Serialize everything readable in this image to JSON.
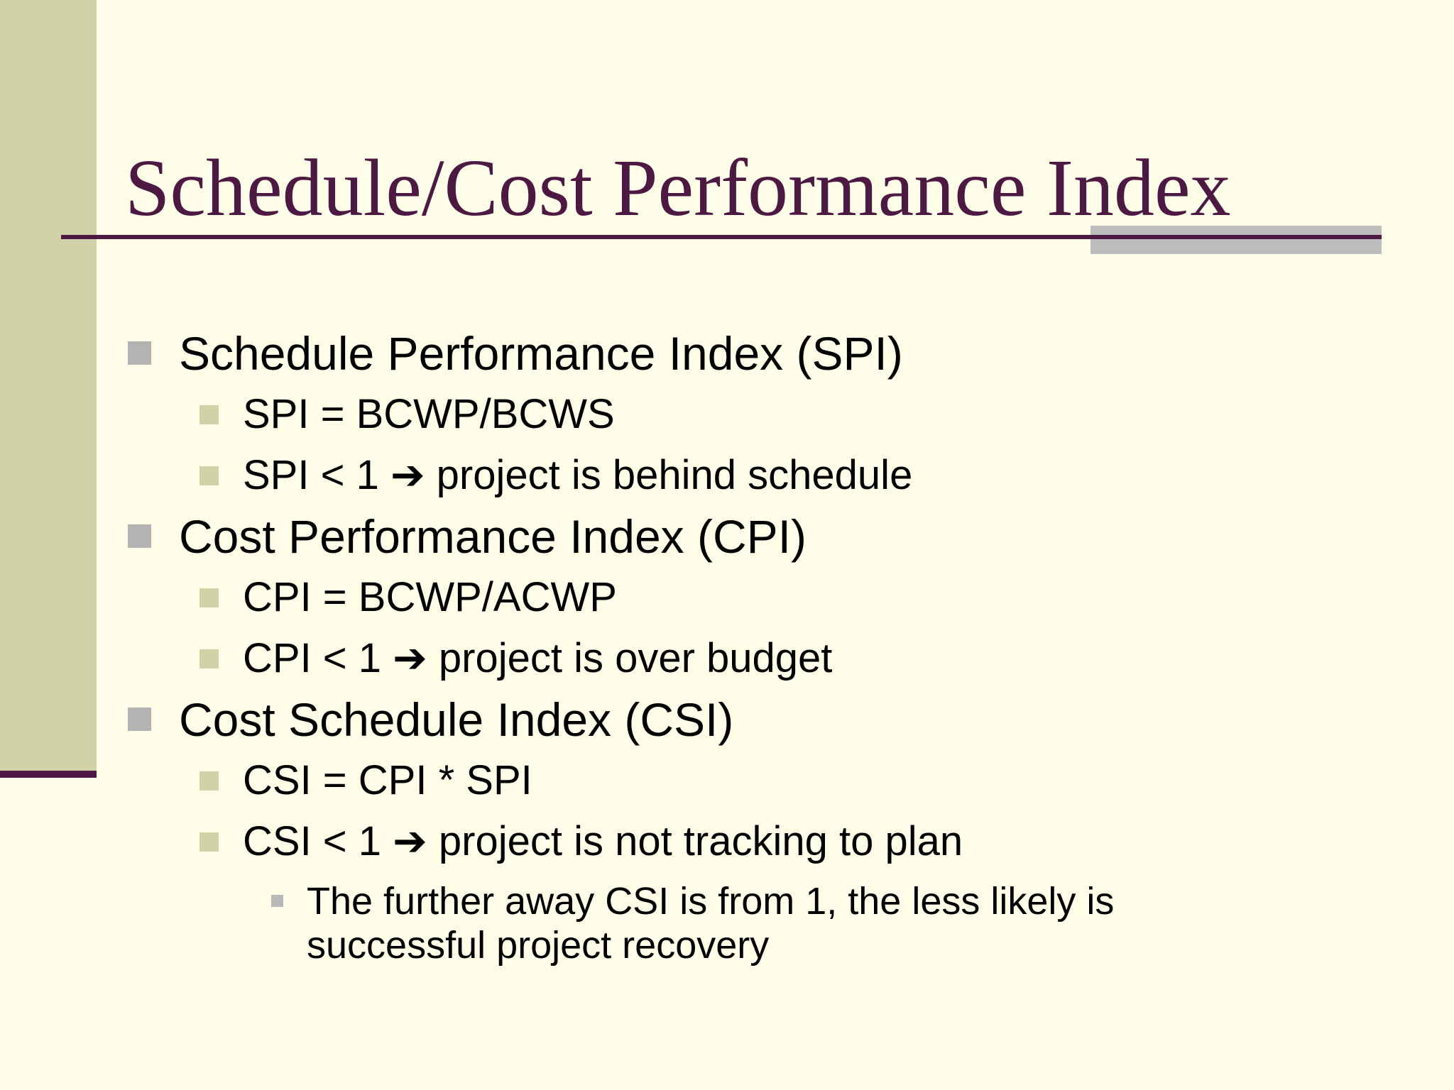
{
  "slide": {
    "title": "Schedule/Cost Performance Index",
    "colors": {
      "background": "#fefee9",
      "sidebar": "#d2d2a8",
      "accent": "#4d1942",
      "title_shadow": "#bdbdbd",
      "bullet_level1": "#b3b3b3",
      "bullet_level2": "#d2d2a8",
      "bullet_level3": "#b8b8b8"
    },
    "bullets": [
      {
        "text": "Schedule Performance Index (SPI)"
      },
      {
        "text": "SPI = BCWP/BCWS"
      },
      {
        "text": "SPI < 1 ➔ project is behind schedule"
      },
      {
        "text": "Cost Performance Index (CPI)"
      },
      {
        "text": "CPI = BCWP/ACWP"
      },
      {
        "text": "CPI < 1 ➔ project is over budget"
      },
      {
        "text": "Cost Schedule Index (CSI)"
      },
      {
        "text": "CSI = CPI * SPI"
      },
      {
        "text": "CSI < 1 ➔ project is not tracking to plan"
      },
      {
        "line1": "The further away CSI is from 1, the less likely is",
        "line2": "successful project recovery"
      }
    ]
  }
}
